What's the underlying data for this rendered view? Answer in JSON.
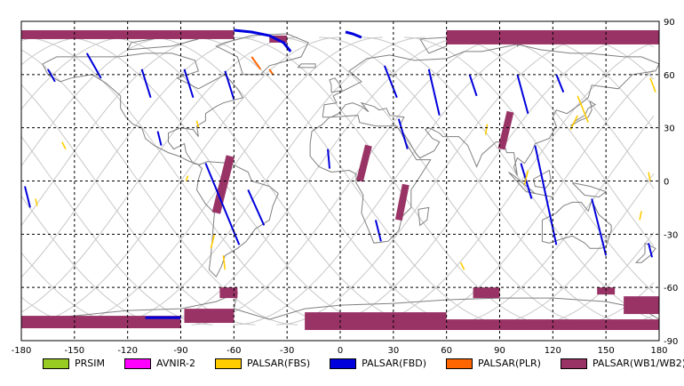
{
  "map": {
    "lon_ticks": [
      "-180",
      "-150",
      "-120",
      "-90",
      "-60",
      "-30",
      "0",
      "30",
      "60",
      "90",
      "120",
      "150",
      "180"
    ],
    "lat_ticks": [
      "90",
      "60",
      "30",
      "0",
      "-30",
      "-60",
      "-90"
    ],
    "lon_values": [
      -180,
      -150,
      -120,
      -90,
      -60,
      -30,
      0,
      30,
      60,
      90,
      120,
      150,
      180
    ],
    "lat_values": [
      90,
      60,
      30,
      0,
      -30,
      -60,
      -90
    ],
    "colors": {
      "grid": "#000000",
      "orbit": "#c8c8c8",
      "coast": "#808080"
    }
  },
  "legend": [
    {
      "label": "PRSIM",
      "color": "#99cc22"
    },
    {
      "label": "AVNIR-2",
      "color": "#ff00ff"
    },
    {
      "label": "PALSAR(FBS)",
      "color": "#ffcc00"
    },
    {
      "label": "PALSAR(FBD)",
      "color": "#0000dd"
    },
    {
      "label": "PALSAR(PLR)",
      "color": "#ff6600"
    },
    {
      "label": "PALSAR(WB1/WB2)",
      "color": "#993366"
    }
  ],
  "swaths": {
    "wb": [
      {
        "lon": [
          -180,
          -60
        ],
        "lat": [
          85,
          80
        ]
      },
      {
        "lon": [
          -40,
          -30
        ],
        "lat": [
          82,
          78
        ]
      },
      {
        "lon": [
          60,
          180
        ],
        "lat": [
          85,
          77
        ]
      },
      {
        "lon": [
          -180,
          -90
        ],
        "lat": [
          -76,
          -83
        ]
      },
      {
        "lon": [
          -88,
          -60
        ],
        "lat": [
          -72,
          -80
        ]
      },
      {
        "lon": [
          -20,
          60
        ],
        "lat": [
          -74,
          -84
        ]
      },
      {
        "lon": [
          60,
          180
        ],
        "lat": [
          -78,
          -84
        ]
      },
      {
        "lon": [
          -68,
          -58
        ],
        "lat": [
          -60,
          -66
        ]
      },
      {
        "lon": [
          75,
          90
        ],
        "lat": [
          -60,
          -66
        ]
      },
      {
        "lon": [
          145,
          155
        ],
        "lat": [
          -60,
          -64
        ]
      },
      {
        "lon": [
          160,
          180
        ],
        "lat": [
          -65,
          -75
        ]
      }
    ],
    "wb_strips": [
      {
        "lon0": -62,
        "lat0": 14,
        "lon1": -70,
        "lat1": -18,
        "w": 6
      },
      {
        "lon0": 16,
        "lat0": 20,
        "lon1": 11,
        "lat1": 0,
        "w": 5
      },
      {
        "lon0": 37,
        "lat0": -2,
        "lon1": 33,
        "lat1": -22,
        "w": 5
      },
      {
        "lon0": 96,
        "lat0": 39,
        "lon1": 91,
        "lat1": 18,
        "w": 5
      }
    ],
    "fbd": [
      {
        "lon0": -165,
        "lat0": 63,
        "lon1": -161,
        "lat1": 56
      },
      {
        "lon0": -143,
        "lat0": 72,
        "lon1": -135,
        "lat1": 58
      },
      {
        "lon0": -112,
        "lat0": 63,
        "lon1": -107,
        "lat1": 47
      },
      {
        "lon0": -88,
        "lat0": 63,
        "lon1": -83,
        "lat1": 47
      },
      {
        "lon0": -65,
        "lat0": 62,
        "lon1": -60,
        "lat1": 46
      },
      {
        "lon0": -103,
        "lat0": 28,
        "lon1": -101,
        "lat1": 20
      },
      {
        "lon0": -76,
        "lat0": 10,
        "lon1": -57,
        "lat1": -36
      },
      {
        "lon0": -52,
        "lat0": -5,
        "lon1": -43,
        "lat1": -25
      },
      {
        "lon0": -7,
        "lat0": 18,
        "lon1": -6,
        "lat1": 7
      },
      {
        "lon0": 25,
        "lat0": 65,
        "lon1": 32,
        "lat1": 47
      },
      {
        "lon0": 33,
        "lat0": 35,
        "lon1": 38,
        "lat1": 18
      },
      {
        "lon0": 50,
        "lat0": 63,
        "lon1": 56,
        "lat1": 37
      },
      {
        "lon0": 73,
        "lat0": 60,
        "lon1": 77,
        "lat1": 48
      },
      {
        "lon0": 100,
        "lat0": 60,
        "lon1": 106,
        "lat1": 38
      },
      {
        "lon0": 122,
        "lat0": 60,
        "lon1": 126,
        "lat1": 50
      },
      {
        "lon0": 110,
        "lat0": 20,
        "lon1": 122,
        "lat1": -36
      },
      {
        "lon0": 142,
        "lat0": -10,
        "lon1": 150,
        "lat1": -42
      },
      {
        "lon0": -178,
        "lat0": -3,
        "lon1": -175,
        "lat1": -15
      },
      {
        "lon0": 102,
        "lat0": 10,
        "lon1": 108,
        "lat1": -10
      },
      {
        "lon0": 20,
        "lat0": -22,
        "lon1": 23,
        "lat1": -34
      },
      {
        "lon0": 174,
        "lat0": -35,
        "lon1": 176,
        "lat1": -43
      }
    ],
    "fbs": [
      {
        "lon0": -157,
        "lat0": 22,
        "lon1": -155,
        "lat1": 18
      },
      {
        "lon0": -81,
        "lat0": 34,
        "lon1": -80,
        "lat1": 30
      },
      {
        "lon0": -86,
        "lat0": 3,
        "lon1": -87,
        "lat1": 0
      },
      {
        "lon0": -71,
        "lat0": -30,
        "lon1": -73,
        "lat1": -38
      },
      {
        "lon0": -66,
        "lat0": -42,
        "lon1": -65,
        "lat1": -50
      },
      {
        "lon0": 83,
        "lat0": 32,
        "lon1": 82,
        "lat1": 26
      },
      {
        "lon0": 106,
        "lat0": 6,
        "lon1": 104,
        "lat1": -2
      },
      {
        "lon0": 134,
        "lat0": 48,
        "lon1": 140,
        "lat1": 33
      },
      {
        "lon0": 175,
        "lat0": 58,
        "lon1": 178,
        "lat1": 50
      },
      {
        "lon0": 174,
        "lat0": 5,
        "lon1": 175,
        "lat1": 0
      },
      {
        "lon0": 170,
        "lat0": -17,
        "lon1": 169,
        "lat1": -22
      },
      {
        "lon0": 68,
        "lat0": -46,
        "lon1": 70,
        "lat1": -50
      },
      {
        "lon0": 134,
        "lat0": 37,
        "lon1": 130,
        "lat1": 29
      },
      {
        "lon0": -172,
        "lat0": -10,
        "lon1": -171,
        "lat1": -14
      }
    ],
    "plr": [
      {
        "lon0": -50,
        "lat0": 70,
        "lon1": -45,
        "lat1": 63
      },
      {
        "lon0": -40,
        "lat0": 63,
        "lon1": -38,
        "lat1": 60
      }
    ],
    "fbd_polar": [
      {
        "lon": [
          -60,
          -50,
          -40,
          -32,
          -28
        ],
        "lat": [
          85,
          84,
          82,
          78,
          73
        ]
      },
      {
        "lon": [
          3,
          7,
          12
        ],
        "lat": [
          84,
          83,
          81
        ]
      },
      {
        "lon": [
          -110,
          -95,
          -90
        ],
        "lat": [
          -77,
          -77,
          -77
        ]
      }
    ]
  }
}
